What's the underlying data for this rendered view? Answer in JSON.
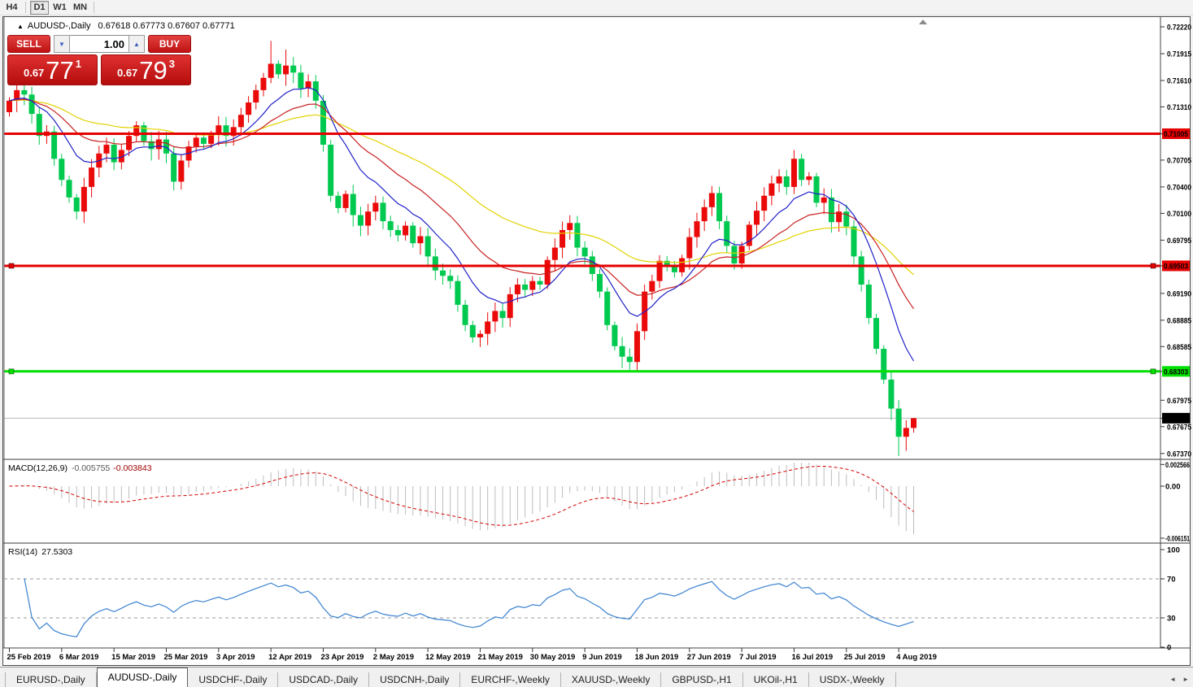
{
  "toolbar": {
    "timeframes": [
      {
        "label": "H4",
        "active": false
      },
      {
        "label": "D1",
        "active": true
      },
      {
        "label": "W1",
        "active": false
      },
      {
        "label": "MN",
        "active": false
      }
    ]
  },
  "window": {
    "collapse_icon": "▲",
    "symbol_title": "AUDUSD-,Daily",
    "ohlc": "0.67618 0.67773 0.67607 0.67771"
  },
  "trade_panel": {
    "sell_label": "SELL",
    "buy_label": "BUY",
    "volume": "1.00",
    "spin_down_icon": "▼",
    "spin_up_icon": "▲",
    "sell_price_prefix": "0.67",
    "sell_price_big": "77",
    "sell_price_sup": "1",
    "buy_price_prefix": "0.67",
    "buy_price_big": "79",
    "buy_price_sup": "3"
  },
  "tabs": {
    "items": [
      {
        "label": "EURUSD-,Daily",
        "active": false
      },
      {
        "label": "AUDUSD-,Daily",
        "active": true
      },
      {
        "label": "USDCHF-,Daily",
        "active": false
      },
      {
        "label": "USDCAD-,Daily",
        "active": false
      },
      {
        "label": "USDCNH-,Daily",
        "active": false
      },
      {
        "label": "EURCHF-,Weekly",
        "active": false
      },
      {
        "label": "XAUUSD-,Weekly",
        "active": false
      },
      {
        "label": "GBPUSD-,H1",
        "active": false
      },
      {
        "label": "UKOil-,H1",
        "active": false
      },
      {
        "label": "USDX-,Weekly",
        "active": false
      }
    ],
    "scroll_left_icon": "◄",
    "scroll_right_icon": "►"
  },
  "chart_data": {
    "type": "candlestick",
    "symbol": "AUDUSD-",
    "timeframe": "Daily",
    "last_ohlc": {
      "open": 0.67618,
      "high": 0.67773,
      "low": 0.67607,
      "close": 0.67771
    },
    "date_labels": [
      "25 Feb 2019",
      "6 Mar 2019",
      "15 Mar 2019",
      "25 Mar 2019",
      "3 Apr 2019",
      "12 Apr 2019",
      "23 Apr 2019",
      "2 May 2019",
      "12 May 2019",
      "21 May 2019",
      "30 May 2019",
      "9 Jun 2019",
      "18 Jun 2019",
      "27 Jun 2019",
      "7 Jul 2019",
      "16 Jul 2019",
      "25 Jul 2019",
      "4 Aug 2019"
    ],
    "candles_per_label": 7,
    "first_open": 0.7125,
    "closes": [
      0.7138,
      0.715,
      0.7145,
      0.7123,
      0.7098,
      0.7103,
      0.7072,
      0.7048,
      0.7028,
      0.7012,
      0.704,
      0.7062,
      0.7078,
      0.7088,
      0.7068,
      0.7082,
      0.7098,
      0.711,
      0.7092,
      0.7083,
      0.7094,
      0.7078,
      0.7046,
      0.707,
      0.7086,
      0.7096,
      0.7089,
      0.71,
      0.711,
      0.7098,
      0.7108,
      0.7122,
      0.7136,
      0.715,
      0.7164,
      0.718,
      0.7168,
      0.7178,
      0.717,
      0.7152,
      0.716,
      0.7138,
      0.7088,
      0.703,
      0.7016,
      0.7032,
      0.7008,
      0.6996,
      0.7012,
      0.7022,
      0.7001,
      0.6991,
      0.6985,
      0.6996,
      0.6976,
      0.6984,
      0.6961,
      0.6945,
      0.6939,
      0.6933,
      0.6906,
      0.6883,
      0.6869,
      0.6873,
      0.6887,
      0.6899,
      0.6891,
      0.6918,
      0.6929,
      0.6923,
      0.6933,
      0.6929,
      0.6957,
      0.6971,
      0.6991,
      0.6999,
      0.6971,
      0.6961,
      0.6941,
      0.6921,
      0.6883,
      0.6859,
      0.6847,
      0.6841,
      0.6876,
      0.6921,
      0.6933,
      0.6956,
      0.6951,
      0.6943,
      0.6959,
      0.6983,
      0.7001,
      0.7017,
      0.7033,
      0.7001,
      0.6973,
      0.6953,
      0.6973,
      0.6997,
      0.7013,
      0.703,
      0.7044,
      0.7052,
      0.704,
      0.7072,
      0.7048,
      0.7052,
      0.7022,
      0.7028,
      0.7,
      0.7012,
      0.6995,
      0.6961,
      0.6929,
      0.6891,
      0.6856,
      0.6821,
      0.6788,
      0.6756,
      0.6766,
      0.67771
    ],
    "wick_overrides": {
      "9": {
        "low": 0.7003
      },
      "35": {
        "high": 0.7206
      },
      "37": {
        "high": 0.7196
      },
      "63": {
        "low": 0.6858
      },
      "83": {
        "low": 0.6832
      },
      "105": {
        "high": 0.7082
      },
      "119": {
        "low": 0.6734
      },
      "120": {
        "low": 0.674
      },
      "121": {
        "high": 0.67773,
        "low": 0.67607
      }
    },
    "moving_averages": [
      {
        "name": "slow-ma",
        "period": 45,
        "color": "#e3d200"
      },
      {
        "name": "mid-ma",
        "period": 21,
        "color": "#c82020"
      },
      {
        "name": "fast-ma",
        "period": 10,
        "color": "#2020c8"
      }
    ],
    "horizontal_lines": [
      {
        "value": 0.71005,
        "label": "0.71005",
        "color": "#e60000",
        "handles": false
      },
      {
        "value": 0.69503,
        "label": "0.69503",
        "color": "#e60000",
        "handles": true
      },
      {
        "value": 0.68303,
        "label": "0.68303",
        "color": "#00e100",
        "handles": true
      }
    ],
    "last_price": {
      "value": 0.67771,
      "label": "0.67771"
    },
    "price_axis": {
      "ticks": [
        {
          "value": 0.7222,
          "label": "0.72220",
          "type": "normal"
        },
        {
          "value": 0.71915,
          "label": "0.71915",
          "type": "normal"
        },
        {
          "value": 0.7161,
          "label": "0.71610",
          "type": "normal"
        },
        {
          "value": 0.7131,
          "label": "0.71310",
          "type": "normal"
        },
        {
          "value": 0.71005,
          "label": "0.71005",
          "type": "red"
        },
        {
          "value": 0.70705,
          "label": "0.70705",
          "type": "normal"
        },
        {
          "value": 0.704,
          "label": "0.70400",
          "type": "normal"
        },
        {
          "value": 0.701,
          "label": "0.70100",
          "type": "normal"
        },
        {
          "value": 0.69795,
          "label": "0.69795",
          "type": "normal"
        },
        {
          "value": 0.69503,
          "label": "0.69503",
          "type": "red"
        },
        {
          "value": 0.6919,
          "label": "0.69190",
          "type": "normal"
        },
        {
          "value": 0.68885,
          "label": "0.68885",
          "type": "normal"
        },
        {
          "value": 0.68585,
          "label": "0.68585",
          "type": "normal"
        },
        {
          "value": 0.68303,
          "label": "0.68303",
          "type": "green"
        },
        {
          "value": 0.67975,
          "label": "0.67975",
          "type": "normal"
        },
        {
          "value": 0.67771,
          "label": "0.67771",
          "type": "dark"
        },
        {
          "value": 0.67675,
          "label": "0.67675",
          "type": "normal"
        },
        {
          "value": 0.6737,
          "label": "0.67370",
          "type": "normal"
        }
      ]
    },
    "macd": {
      "name": "MACD(12,26,9)",
      "fast": 12,
      "slow": 26,
      "signal": 9,
      "main_value": "-0.005755",
      "signal_value": "-0.003843",
      "scale_labels": [
        {
          "value": 0.002566,
          "label": "0.002566"
        },
        {
          "value": 0,
          "label": "0.00"
        },
        {
          "value": -0.006151,
          "label": "-0.006151"
        }
      ]
    },
    "rsi": {
      "name": "RSI(14)",
      "period": 14,
      "value": "27.5303",
      "levels": [
        70,
        30
      ],
      "scale_labels": [
        {
          "value": 100,
          "label": "100"
        },
        {
          "value": 70,
          "label": "70"
        },
        {
          "value": 30,
          "label": "30"
        },
        {
          "value": 0,
          "label": "0"
        }
      ]
    },
    "colors": {
      "up": "#ea0a0a",
      "down": "#00c94f",
      "macd_hist": "#bdbdbd",
      "macd_signal": "#d40000",
      "rsi_line": "#3b82d0",
      "levels_dash": "#9a9a9a",
      "last_price_line": "#b8b8b8"
    }
  }
}
